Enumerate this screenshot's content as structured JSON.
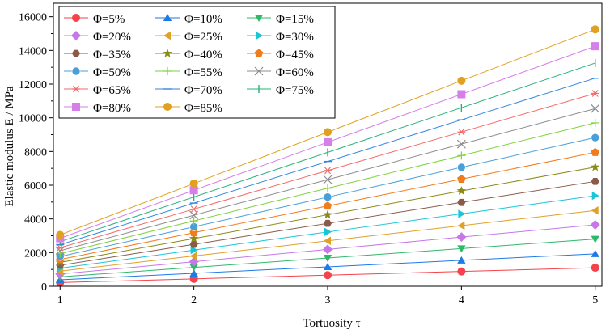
{
  "chart_data": {
    "type": "line",
    "title": "",
    "xlabel": "Tortuosity τ",
    "ylabel": "Elastic modulus E / MPa",
    "x": [
      1,
      2,
      3,
      4,
      5
    ],
    "xlim": [
      0.95,
      5.05
    ],
    "ylim": [
      0,
      16800
    ],
    "xticks": [
      "1",
      "2",
      "3",
      "4",
      "5"
    ],
    "yticks": [
      "0",
      "2000",
      "4000",
      "6000",
      "8000",
      "10000",
      "12000",
      "14000",
      "16000"
    ],
    "legend_position": "top-left",
    "series": [
      {
        "name": "Φ=5%",
        "color": "#f5424b",
        "marker": "circle",
        "values": [
          220,
          440,
          660,
          880,
          1100
        ]
      },
      {
        "name": "Φ=10%",
        "color": "#1e7ae6",
        "marker": "triangle-up",
        "values": [
          385,
          770,
          1155,
          1540,
          1925
        ]
      },
      {
        "name": "Φ=15%",
        "color": "#2fb86a",
        "marker": "triangle-down",
        "values": [
          560,
          1120,
          1680,
          2240,
          2800
        ]
      },
      {
        "name": "Φ=20%",
        "color": "#c678e8",
        "marker": "diamond",
        "values": [
          730,
          1460,
          2190,
          2920,
          3650
        ]
      },
      {
        "name": "Φ=25%",
        "color": "#e0a129",
        "marker": "triangle-left",
        "values": [
          900,
          1800,
          2700,
          3600,
          4500
        ]
      },
      {
        "name": "Φ=30%",
        "color": "#19c6d8",
        "marker": "triangle-right",
        "values": [
          1075,
          2150,
          3225,
          4300,
          5375
        ]
      },
      {
        "name": "Φ=35%",
        "color": "#8b5a4a",
        "marker": "hexagon",
        "values": [
          1245,
          2490,
          3735,
          4980,
          6225
        ]
      },
      {
        "name": "Φ=40%",
        "color": "#8a8a18",
        "marker": "star",
        "values": [
          1415,
          2830,
          4245,
          5660,
          7075
        ]
      },
      {
        "name": "Φ=45%",
        "color": "#f07c1b",
        "marker": "pentagon",
        "values": [
          1590,
          3180,
          4770,
          6360,
          7950
        ]
      },
      {
        "name": "Φ=50%",
        "color": "#4a9fd8",
        "marker": "sphere",
        "values": [
          1765,
          3530,
          5295,
          7060,
          8825
        ]
      },
      {
        "name": "Φ=55%",
        "color": "#7fd23a",
        "marker": "plus",
        "values": [
          1940,
          3880,
          5820,
          7760,
          9700
        ]
      },
      {
        "name": "Φ=60%",
        "color": "#8c8c8c",
        "marker": "x",
        "values": [
          2110,
          4220,
          6330,
          8440,
          10550
        ]
      },
      {
        "name": "Φ=65%",
        "color": "#f26a6a",
        "marker": "asterisk",
        "values": [
          2290,
          4580,
          6870,
          9160,
          11450
        ]
      },
      {
        "name": "Φ=70%",
        "color": "#2f86e0",
        "marker": "dash",
        "values": [
          2470,
          4940,
          7410,
          9880,
          12350
        ]
      },
      {
        "name": "Φ=75%",
        "color": "#28b07a",
        "marker": "bar",
        "values": [
          2650,
          5300,
          7950,
          10600,
          13250
        ]
      },
      {
        "name": "Φ=80%",
        "color": "#d67fe8",
        "marker": "square",
        "values": [
          2850,
          5700,
          8550,
          11400,
          14250
        ]
      },
      {
        "name": "Φ=85%",
        "color": "#e0a020",
        "marker": "circle",
        "values": [
          3050,
          6100,
          9150,
          12200,
          15250
        ]
      }
    ]
  }
}
